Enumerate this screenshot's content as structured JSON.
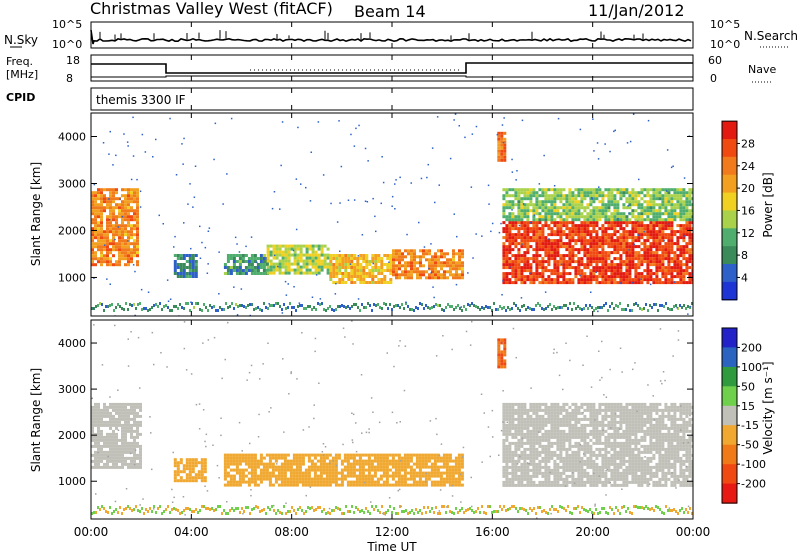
{
  "header": {
    "station": "Christmas Valley West (fitACF)",
    "beam": "Beam 14",
    "date": "11/Jan/2012"
  },
  "top_panels": {
    "nsky_label": "N.Sky",
    "nsky_ticks": [
      "10^5",
      "10^0"
    ],
    "nsearch_label": "N.Search",
    "nsearch_ticks": [
      "10^5",
      "10^0"
    ],
    "freq_label": "Freq.",
    "freq_unit": "[MHz]",
    "freq_ticks": [
      "18",
      "8"
    ],
    "nave_label": "Nave",
    "nave_ticks": [
      "60",
      "0"
    ],
    "cpid_label": "CPID",
    "cpid_text": "themis 3300 IF"
  },
  "x_axis": {
    "label": "Time UT",
    "ticks": [
      "00:00",
      "04:00",
      "08:00",
      "12:00",
      "16:00",
      "20:00",
      "00:00"
    ]
  },
  "colors": {
    "power_scale": [
      "#1e35d6",
      "#2d60c8",
      "#3a8a5a",
      "#4fae6e",
      "#a9d24a",
      "#f0d020",
      "#f3a020",
      "#f07a1c",
      "#f04a10",
      "#e31a10"
    ],
    "velocity_scale": [
      "#2222c8",
      "#2a64c0",
      "#2f9a3e",
      "#6fd04c",
      "#c0c0b8",
      "#f0a830",
      "#f07a18",
      "#f04a12",
      "#e81812"
    ]
  },
  "chart_data": [
    {
      "type": "heatmap",
      "title": "",
      "xlabel": "",
      "ylabel": "Slant Range [km]",
      "xlim": [
        0,
        24
      ],
      "ylim": [
        180,
        4500
      ],
      "yticks": [
        "4000",
        "3000",
        "2000",
        "1000"
      ],
      "colorbar": {
        "label": "Power [dB]",
        "ticks": [
          "28",
          "24",
          "20",
          "16",
          "12",
          "8",
          "4"
        ],
        "range": [
          0,
          30
        ]
      },
      "echo_regions": [
        {
          "t": [
            0.0,
            1.8
          ],
          "range": [
            1300,
            2900
          ],
          "level": 22
        },
        {
          "t": [
            3.3,
            4.2
          ],
          "range": [
            1000,
            1500
          ],
          "level": 6
        },
        {
          "t": [
            5.3,
            7.0
          ],
          "range": [
            1100,
            1500
          ],
          "level": 8
        },
        {
          "t": [
            7.0,
            9.5
          ],
          "range": [
            1100,
            1700
          ],
          "level": 14
        },
        {
          "t": [
            9.5,
            12.0
          ],
          "range": [
            900,
            1500
          ],
          "level": 18
        },
        {
          "t": [
            12.0,
            14.8
          ],
          "range": [
            1000,
            1600
          ],
          "level": 22
        },
        {
          "t": [
            16.2,
            16.5
          ],
          "range": [
            3500,
            4100
          ],
          "level": 24
        },
        {
          "t": [
            16.4,
            24.0
          ],
          "range": [
            900,
            2200
          ],
          "level": 28
        },
        {
          "t": [
            16.4,
            24.0
          ],
          "range": [
            2200,
            2900
          ],
          "level": 12
        }
      ]
    },
    {
      "type": "heatmap",
      "title": "",
      "xlabel": "Time UT",
      "ylabel": "Slant Range [km]",
      "xlim": [
        0,
        24
      ],
      "ylim": [
        180,
        4500
      ],
      "yticks": [
        "4000",
        "3000",
        "2000",
        "1000"
      ],
      "colorbar": {
        "label": "Velocity [m s⁻¹]",
        "ticks": [
          "200",
          "100",
          "50",
          "15",
          "-15",
          "-50",
          "-100",
          "-200"
        ],
        "range": [
          -250,
          250
        ]
      },
      "echo_regions": [
        {
          "t": [
            0.0,
            2.0
          ],
          "range": [
            1300,
            2700
          ],
          "level": 0
        },
        {
          "t": [
            3.3,
            4.5
          ],
          "range": [
            1000,
            1500
          ],
          "level": -60
        },
        {
          "t": [
            5.3,
            14.8
          ],
          "range": [
            900,
            1600
          ],
          "level": -60
        },
        {
          "t": [
            16.2,
            16.5
          ],
          "range": [
            3500,
            4100
          ],
          "level": -150
        },
        {
          "t": [
            16.4,
            24.0
          ],
          "range": [
            900,
            2700
          ],
          "level": 0
        }
      ]
    }
  ]
}
